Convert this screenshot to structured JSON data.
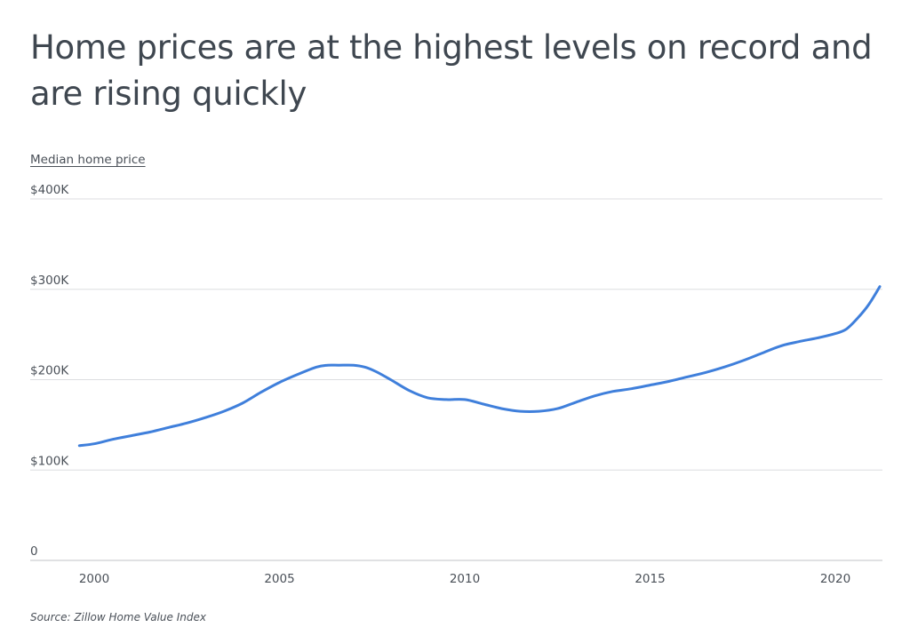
{
  "chart_data": {
    "type": "line",
    "title": "Home prices are at the highest levels on record and are rising quickly",
    "ylabel": "Median home price",
    "xlabel": "",
    "source": "Source:  Zillow Home Value Index",
    "ylim": [
      0,
      400000
    ],
    "xlim": [
      1999.6,
      2021.3
    ],
    "grid": true,
    "yticks": [
      {
        "value": 0,
        "label": "0"
      },
      {
        "value": 100000,
        "label": "$100K"
      },
      {
        "value": 200000,
        "label": "$200K"
      },
      {
        "value": 300000,
        "label": "$300K"
      },
      {
        "value": 400000,
        "label": "$400K"
      }
    ],
    "xticks": [
      {
        "value": 2000,
        "label": "2000"
      },
      {
        "value": 2005,
        "label": "2005"
      },
      {
        "value": 2010,
        "label": "2010"
      },
      {
        "value": 2015,
        "label": "2015"
      },
      {
        "value": 2020,
        "label": "2020"
      }
    ],
    "line_color": "#3f7fdb",
    "series": [
      {
        "name": "Median home price",
        "x": [
          1999.6,
          2000.0,
          2000.5,
          2001.0,
          2001.5,
          2002.0,
          2002.5,
          2003.0,
          2003.5,
          2004.0,
          2004.5,
          2005.0,
          2005.5,
          2006.0,
          2006.3,
          2006.6,
          2007.0,
          2007.3,
          2007.6,
          2008.0,
          2008.5,
          2009.0,
          2009.5,
          2010.0,
          2010.5,
          2011.0,
          2011.5,
          2012.0,
          2012.5,
          2013.0,
          2013.5,
          2014.0,
          2014.5,
          2015.0,
          2015.5,
          2016.0,
          2016.5,
          2017.0,
          2017.5,
          2018.0,
          2018.5,
          2019.0,
          2019.5,
          2020.0,
          2020.3,
          2020.6,
          2020.9,
          2021.2
        ],
        "values": [
          127000,
          129000,
          134000,
          138000,
          142000,
          147000,
          152000,
          158000,
          165000,
          174000,
          186000,
          197000,
          206000,
          214000,
          216000,
          216000,
          216000,
          214000,
          209000,
          200000,
          188000,
          180000,
          178000,
          178000,
          173000,
          168000,
          165000,
          165000,
          168000,
          175000,
          182000,
          187000,
          190000,
          194000,
          198000,
          203000,
          208000,
          214000,
          221000,
          229000,
          237000,
          242000,
          246000,
          251000,
          256000,
          268000,
          283000,
          303000
        ]
      }
    ]
  }
}
